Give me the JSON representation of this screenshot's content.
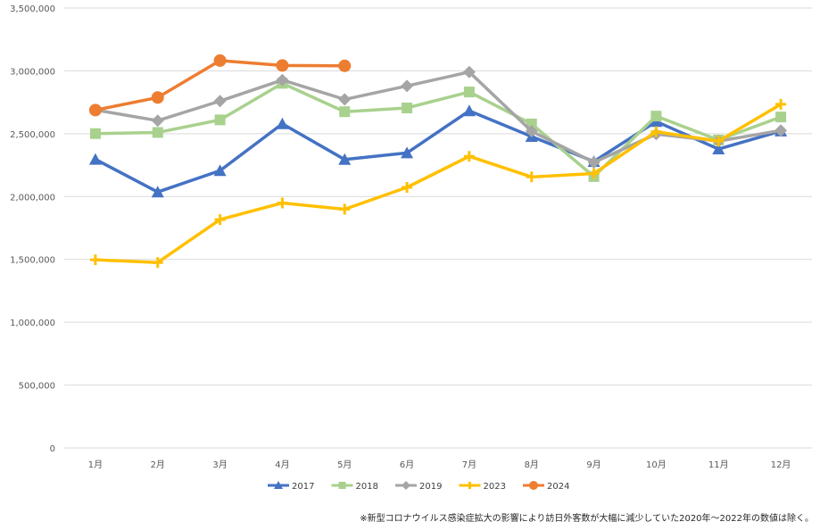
{
  "chart_data": {
    "type": "line",
    "categories": [
      "1月",
      "2月",
      "3月",
      "4月",
      "5月",
      "6月",
      "7月",
      "8月",
      "9月",
      "10月",
      "11月",
      "12月"
    ],
    "ylim": [
      0,
      3500000
    ],
    "yticks": [
      0,
      500000,
      1000000,
      1500000,
      2000000,
      2500000,
      3000000,
      3500000
    ],
    "ytick_labels": [
      "0",
      "500,000",
      "1,000,000",
      "1,500,000",
      "2,000,000",
      "2,500,000",
      "3,000,000",
      "3,500,000"
    ],
    "grid": true,
    "legend_position": "bottom",
    "series": [
      {
        "name": "2017",
        "color": "#4472C4",
        "marker": "triangle",
        "values": [
          2296000,
          2036000,
          2206000,
          2579000,
          2295000,
          2347000,
          2682000,
          2478000,
          2279000,
          2597000,
          2378000,
          2521000
        ]
      },
      {
        "name": "2018",
        "color": "#A9D18E",
        "marker": "square",
        "values": [
          2501000,
          2510000,
          2610000,
          2901000,
          2675000,
          2705000,
          2832000,
          2578000,
          2159000,
          2640000,
          2450000,
          2633000
        ]
      },
      {
        "name": "2019",
        "color": "#A5A5A5",
        "marker": "diamond",
        "values": [
          2689000,
          2604000,
          2760000,
          2927000,
          2773000,
          2880000,
          2991000,
          2520000,
          2272000,
          2497000,
          2441000,
          2526000
        ]
      },
      {
        "name": "2023",
        "color": "#FFC000",
        "marker": "plus",
        "values": [
          1497000,
          1475000,
          1817000,
          1949000,
          1899000,
          2073000,
          2320000,
          2156000,
          2183000,
          2516000,
          2441000,
          2734000
        ]
      },
      {
        "name": "2024",
        "color": "#ED7D31",
        "marker": "circle",
        "values": [
          2688000,
          2788000,
          3082000,
          3043000,
          3040000,
          null,
          null,
          null,
          null,
          null,
          null,
          null
        ]
      }
    ]
  },
  "footnote": "※新型コロナウイルス感染症拡大の影響により訪日外客数が大幅に減少していた2020年～2022年の数値は除く。"
}
